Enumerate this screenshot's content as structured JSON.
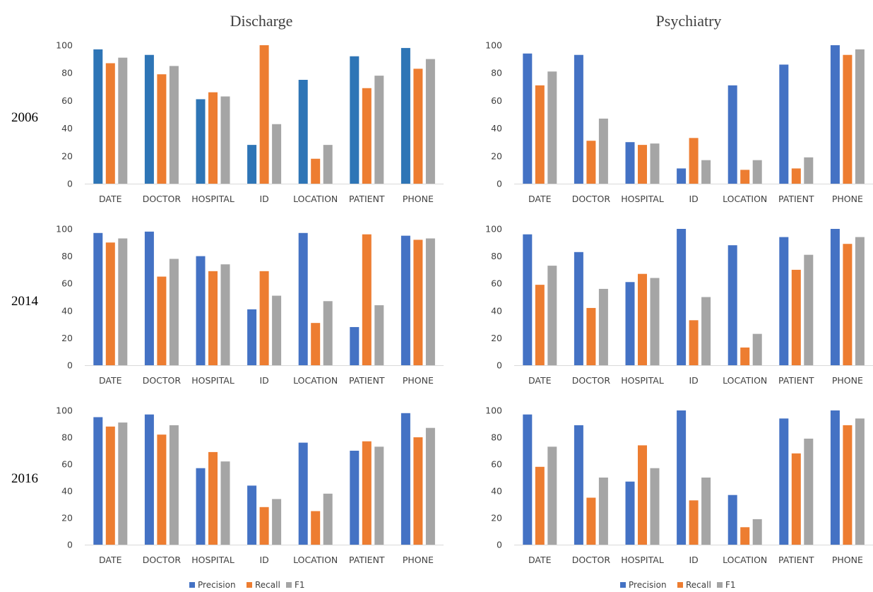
{
  "column_titles": [
    "Discharge",
    "Psychiatry"
  ],
  "row_labels": [
    "2006",
    "2014",
    "2016"
  ],
  "legend": [
    "Precision",
    "Recall",
    "F1"
  ],
  "colors": {
    "Precision": "#4472C4",
    "Precision_alt": "#2E75B6",
    "Recall": "#ED7D31",
    "F1": "#A5A5A5",
    "axis": "#D9D9D9",
    "text": "#404040"
  },
  "chart_data": [
    {
      "type": "bar",
      "dataset": "Discharge",
      "year": "2006",
      "categories": [
        "DATE",
        "DOCTOR",
        "HOSPITAL",
        "ID",
        "LOCATION",
        "PATIENT",
        "PHONE"
      ],
      "ylim": [
        0,
        100
      ],
      "yticks": [
        0,
        20,
        40,
        60,
        80,
        100
      ],
      "series": [
        {
          "name": "Precision",
          "values": [
            97,
            93,
            61,
            28,
            75,
            92,
            98
          ]
        },
        {
          "name": "Recall",
          "values": [
            87,
            79,
            66,
            100,
            18,
            69,
            83
          ]
        },
        {
          "name": "F1",
          "values": [
            91,
            85,
            63,
            43,
            28,
            78,
            90
          ]
        }
      ]
    },
    {
      "type": "bar",
      "dataset": "Psychiatry",
      "year": "2006",
      "categories": [
        "DATE",
        "DOCTOR",
        "HOSPITAL",
        "ID",
        "LOCATION",
        "PATIENT",
        "PHONE"
      ],
      "ylim": [
        0,
        100
      ],
      "yticks": [
        0,
        20,
        40,
        60,
        80,
        100
      ],
      "series": [
        {
          "name": "Precision",
          "values": [
            94,
            93,
            30,
            11,
            71,
            86,
            100
          ]
        },
        {
          "name": "Recall",
          "values": [
            71,
            31,
            28,
            33,
            10,
            11,
            93
          ]
        },
        {
          "name": "F1",
          "values": [
            81,
            47,
            29,
            17,
            17,
            19,
            97
          ]
        }
      ]
    },
    {
      "type": "bar",
      "dataset": "Discharge",
      "year": "2014",
      "categories": [
        "DATE",
        "DOCTOR",
        "HOSPITAL",
        "ID",
        "LOCATION",
        "PATIENT",
        "PHONE"
      ],
      "ylim": [
        0,
        100
      ],
      "yticks": [
        0,
        20,
        40,
        60,
        80,
        100
      ],
      "series": [
        {
          "name": "Precision",
          "values": [
            97,
            98,
            80,
            41,
            97,
            28,
            95
          ]
        },
        {
          "name": "Recall",
          "values": [
            90,
            65,
            69,
            69,
            31,
            96,
            92
          ]
        },
        {
          "name": "F1",
          "values": [
            93,
            78,
            74,
            51,
            47,
            44,
            93
          ]
        }
      ]
    },
    {
      "type": "bar",
      "dataset": "Psychiatry",
      "year": "2014",
      "categories": [
        "DATE",
        "DOCTOR",
        "HOSPITAL",
        "ID",
        "LOCATION",
        "PATIENT",
        "PHONE"
      ],
      "ylim": [
        0,
        100
      ],
      "yticks": [
        0,
        20,
        40,
        60,
        80,
        100
      ],
      "series": [
        {
          "name": "Precision",
          "values": [
            96,
            83,
            61,
            100,
            88,
            94,
            100
          ]
        },
        {
          "name": "Recall",
          "values": [
            59,
            42,
            67,
            33,
            13,
            70,
            89
          ]
        },
        {
          "name": "F1",
          "values": [
            73,
            56,
            64,
            50,
            23,
            81,
            94
          ]
        }
      ]
    },
    {
      "type": "bar",
      "dataset": "Discharge",
      "year": "2016",
      "categories": [
        "DATE",
        "DOCTOR",
        "HOSPITAL",
        "ID",
        "LOCATION",
        "PATIENT",
        "PHONE"
      ],
      "ylim": [
        0,
        100
      ],
      "yticks": [
        0,
        20,
        40,
        60,
        80,
        100
      ],
      "series": [
        {
          "name": "Precision",
          "values": [
            95,
            97,
            57,
            44,
            76,
            70,
            98
          ]
        },
        {
          "name": "Recall",
          "values": [
            88,
            82,
            69,
            28,
            25,
            77,
            80
          ]
        },
        {
          "name": "F1",
          "values": [
            91,
            89,
            62,
            34,
            38,
            73,
            87
          ]
        }
      ]
    },
    {
      "type": "bar",
      "dataset": "Psychiatry",
      "year": "2016",
      "categories": [
        "DATE",
        "DOCTOR",
        "HOSPITAL",
        "ID",
        "LOCATION",
        "PATIENT",
        "PHONE"
      ],
      "ylim": [
        0,
        100
      ],
      "yticks": [
        0,
        20,
        40,
        60,
        80,
        100
      ],
      "series": [
        {
          "name": "Precision",
          "values": [
            97,
            89,
            47,
            100,
            37,
            94,
            100
          ]
        },
        {
          "name": "Recall",
          "values": [
            58,
            35,
            74,
            33,
            13,
            68,
            89
          ]
        },
        {
          "name": "F1",
          "values": [
            73,
            50,
            57,
            50,
            19,
            79,
            94
          ]
        }
      ]
    }
  ]
}
